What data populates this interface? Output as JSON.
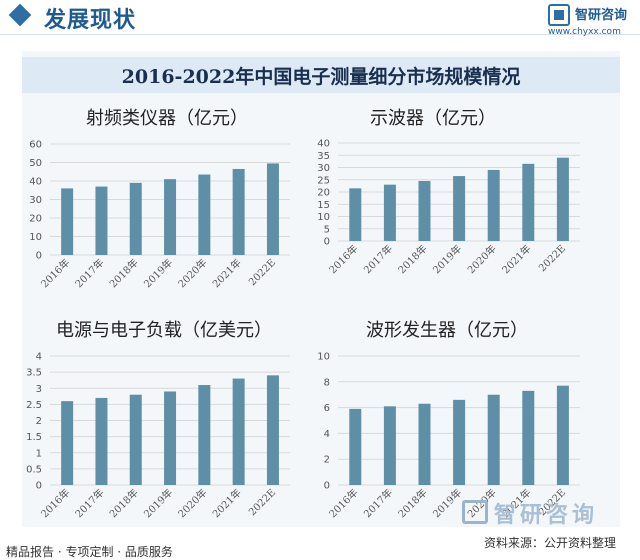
{
  "header": {
    "section_title": "发展现状",
    "brand_name": "智研咨询",
    "brand_url": "www.chyxx.com"
  },
  "main_title": "2016-2022年中国电子测量细分市场规模情况",
  "colors": {
    "bar": "#5f8fa6",
    "grid": "#d9d9d9",
    "accent": "#2f6ea3"
  },
  "footer": {
    "left_text": "精品报告 · 专项定制 · 品质服务",
    "source": "资料来源：公开资料整理",
    "brand": "智研咨询"
  },
  "chart_data": [
    {
      "type": "bar",
      "title": "射频类仪器（亿元）",
      "categories": [
        "2016年",
        "2017年",
        "2018年",
        "2019年",
        "2020年",
        "2021年",
        "2022E"
      ],
      "values": [
        36,
        37,
        39,
        41,
        43.5,
        46.5,
        49.5
      ],
      "ylim": [
        0,
        60
      ],
      "yticks": [
        0,
        10,
        20,
        30,
        40,
        50,
        60
      ],
      "grid": true
    },
    {
      "type": "bar",
      "title": "示波器（亿元）",
      "categories": [
        "2016年",
        "2017年",
        "2018年",
        "2019年",
        "2020年",
        "2021年",
        "2022E"
      ],
      "values": [
        21.5,
        23,
        24.5,
        26.5,
        29,
        31.5,
        34
      ],
      "ylim": [
        0,
        40
      ],
      "yticks": [
        0,
        5,
        10,
        15,
        20,
        25,
        30,
        35,
        40
      ],
      "grid": true
    },
    {
      "type": "bar",
      "title": "电源与电子负载（亿美元）",
      "categories": [
        "2016年",
        "2017年",
        "2018年",
        "2019年",
        "2020年",
        "2021年",
        "2022E"
      ],
      "values": [
        2.6,
        2.7,
        2.8,
        2.9,
        3.1,
        3.3,
        3.4
      ],
      "ylim": [
        0,
        4
      ],
      "yticks": [
        0,
        0.5,
        1,
        1.5,
        2,
        2.5,
        3,
        3.5,
        4
      ],
      "grid": true
    },
    {
      "type": "bar",
      "title": "波形发生器（亿元）",
      "categories": [
        "2016年",
        "2017年",
        "2018年",
        "2019年",
        "2020年",
        "2021年",
        "2022E"
      ],
      "values": [
        5.9,
        6.1,
        6.3,
        6.6,
        7.0,
        7.3,
        7.7
      ],
      "ylim": [
        0,
        10
      ],
      "yticks": [
        0,
        2,
        4,
        6,
        8,
        10
      ],
      "grid": true
    }
  ]
}
